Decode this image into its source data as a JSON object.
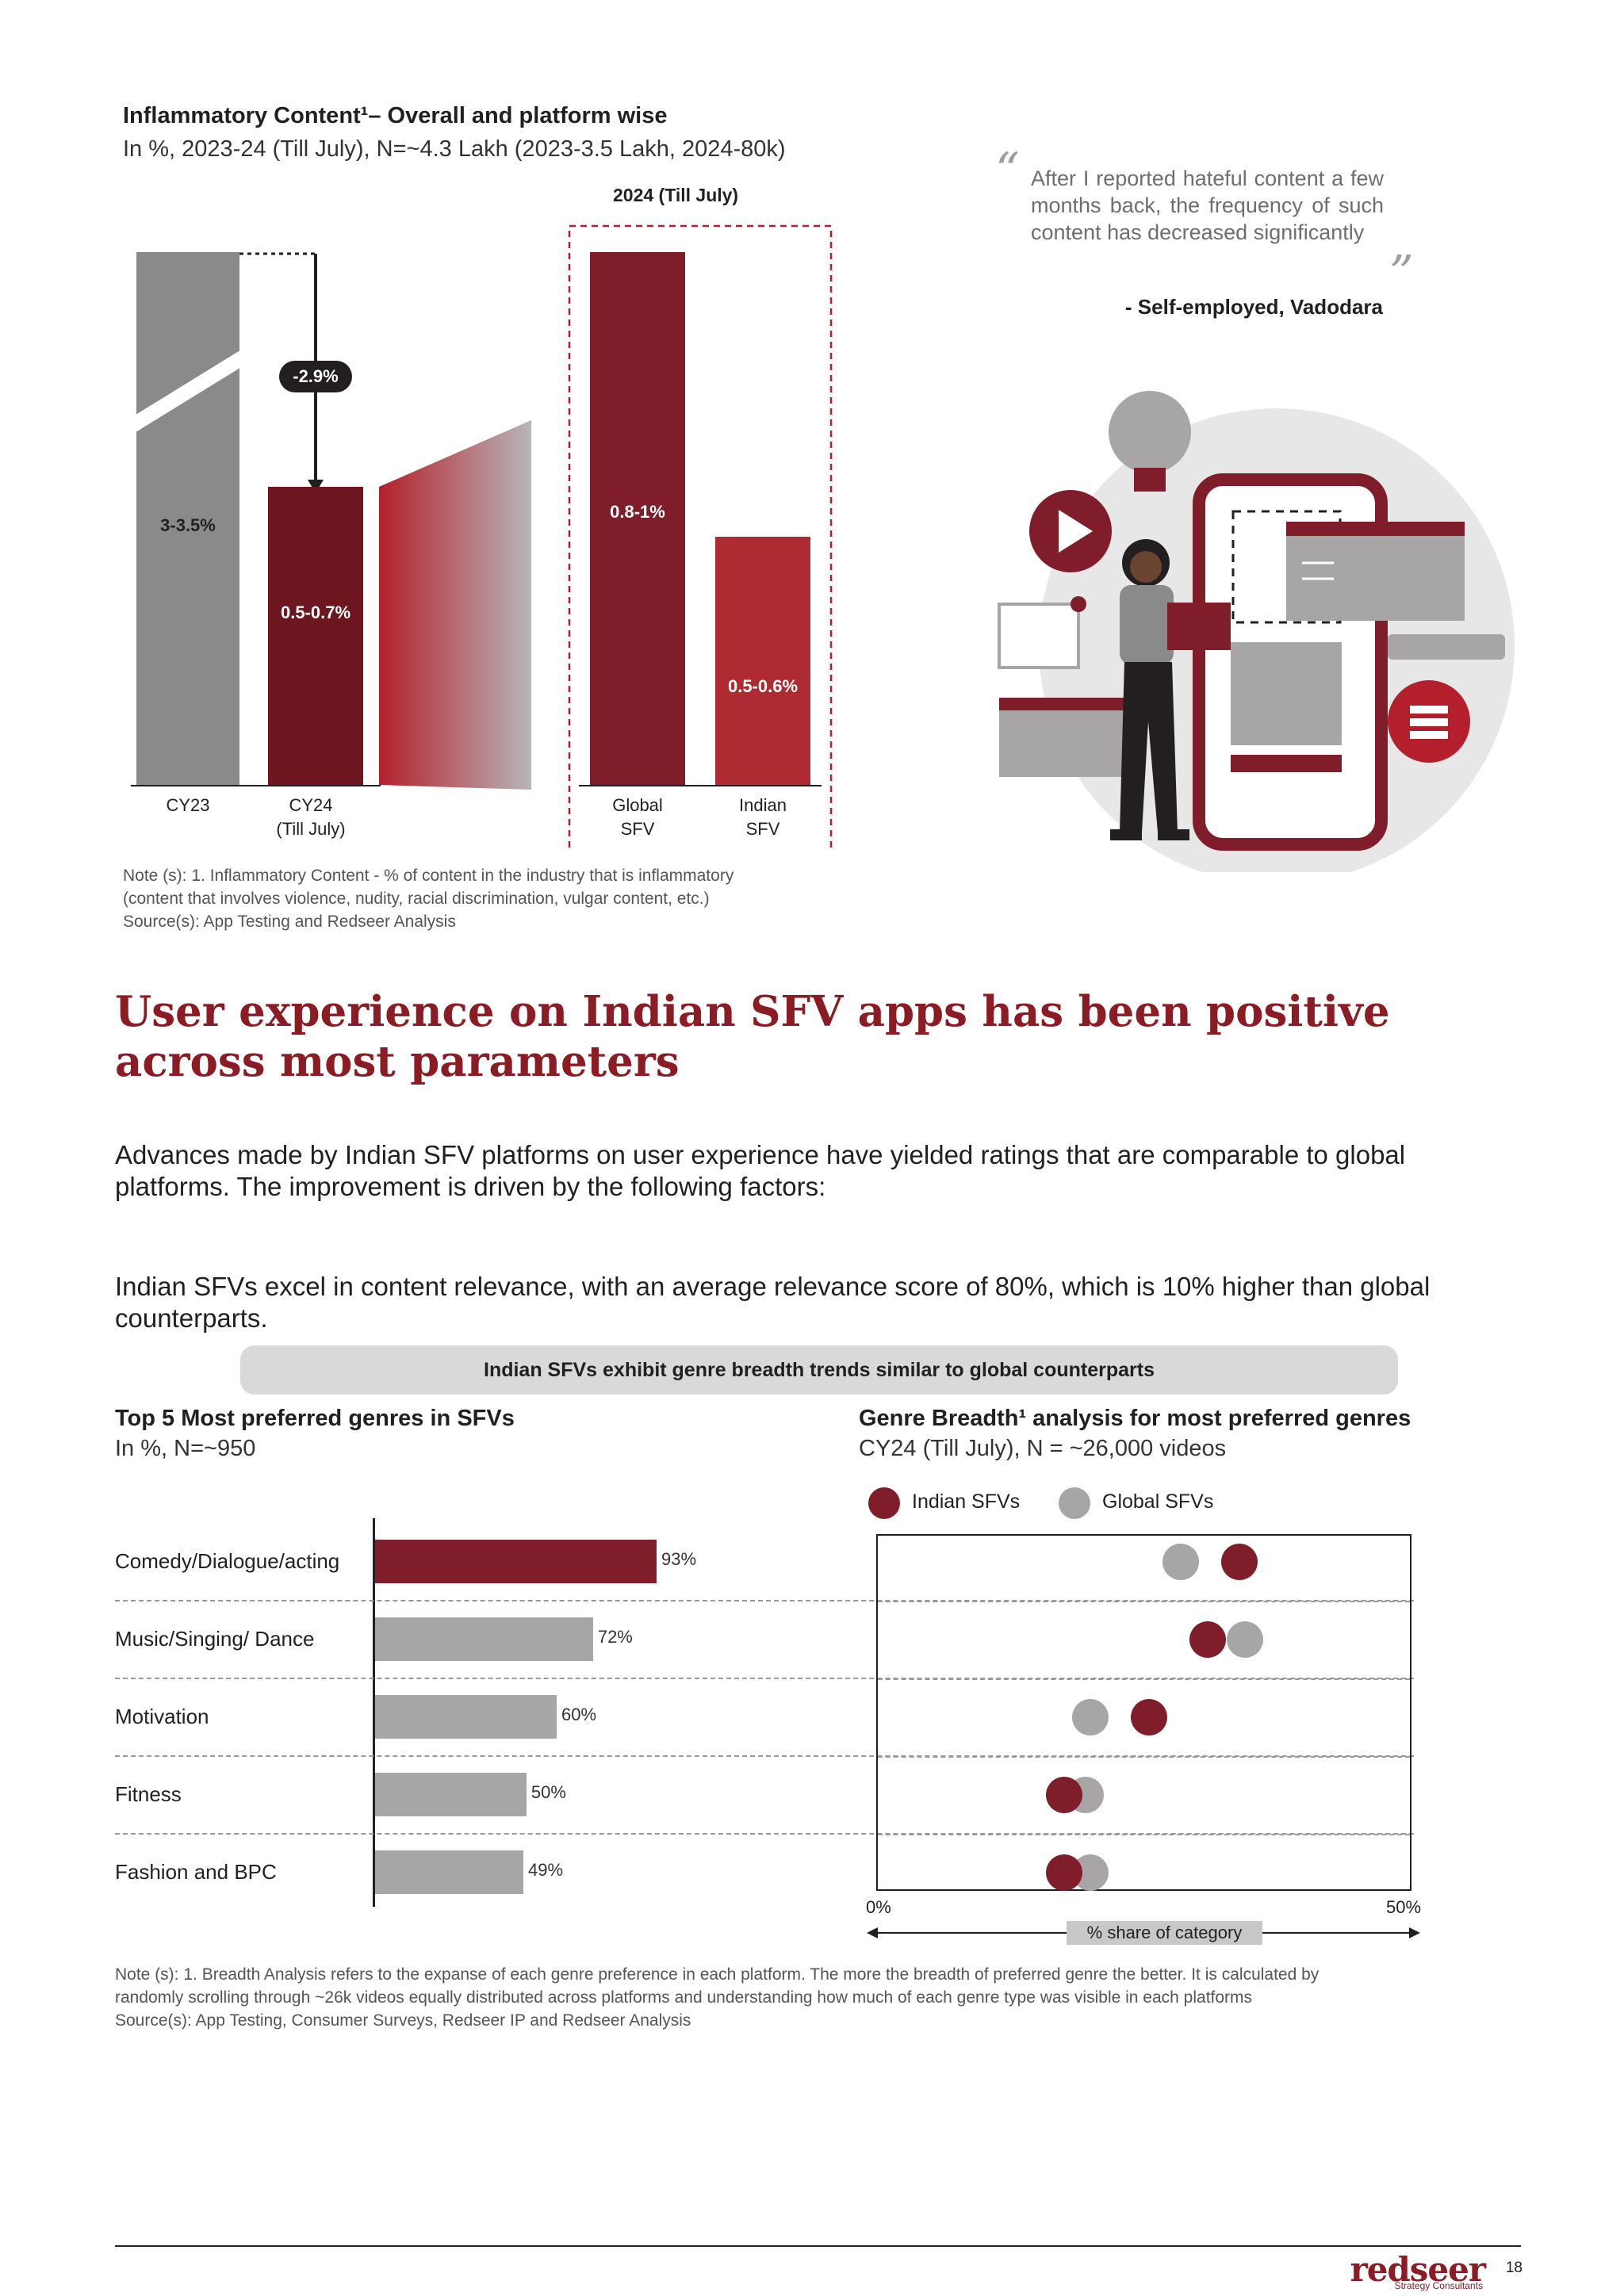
{
  "inflammatory": {
    "title": "Inflammatory Content¹– Overall and platform wise",
    "subtitle": "In %, 2023-24 (Till July), N=~4.3 Lakh (2023-3.5 Lakh, 2024-80k)",
    "panel_title": "2024 (Till July)",
    "change_badge": "-2.9%",
    "bars": [
      {
        "category": "CY23",
        "label": "3-3.5%"
      },
      {
        "category": "CY24",
        "category_line2": "(Till July)",
        "label": "0.5-0.7%"
      },
      {
        "category": "Global",
        "category_line2": "SFV",
        "label": "0.8-1%"
      },
      {
        "category": "Indian",
        "category_line2": "SFV",
        "label": "0.5-0.6%"
      }
    ],
    "note_lines": [
      "Note (s): 1. Inflammatory Content - % of content in the industry that is inflammatory",
      "(content that involves violence, nudity, racial discrimination, vulgar content, etc.)",
      "Source(s): App Testing and Redseer Analysis"
    ]
  },
  "quote": {
    "text": "After I reported hateful content a few months back, the frequency of such content has decreased significantly",
    "author": "- Self-employed, Vadodara",
    "open_mark": "“",
    "close_mark": "”"
  },
  "heading": "User experience on Indian SFV apps has been positive across most parameters",
  "para1": "Advances made by Indian SFV platforms on user experience have yielded ratings that are comparable to global platforms. The improvement is driven by the following factors:",
  "para2": "Indian SFVs excel in content relevance, with an average relevance score of 80%, which is 10% higher than global counterparts.",
  "pill": "Indian SFVs exhibit genre breadth trends similar to global counterparts",
  "genres_chart": {
    "title": "Top 5 Most preferred genres in SFVs",
    "subtitle": "In %, N=~950",
    "items": [
      {
        "label": "Comedy/Dialogue/acting",
        "value": 93,
        "display": "93%",
        "highlight": true
      },
      {
        "label": "Music/Singing/ Dance",
        "value": 72,
        "display": "72%",
        "highlight": false
      },
      {
        "label": "Motivation",
        "value": 60,
        "display": "60%",
        "highlight": false
      },
      {
        "label": "Fitness",
        "value": 50,
        "display": "50%",
        "highlight": false
      },
      {
        "label": "Fashion and BPC",
        "value": 49,
        "display": "49%",
        "highlight": false
      }
    ],
    "colors": {
      "highlight": "#7f1d2b",
      "normal": "#a7a5a6"
    }
  },
  "breadth_chart": {
    "title": "Genre Breadth¹ analysis for most preferred genres",
    "subtitle": "CY24 (Till July), N = ~26,000 videos",
    "legend": [
      {
        "name": "Indian SFVs",
        "color": "#7f1d2b"
      },
      {
        "name": "Global SFVs",
        "color": "#a7a5a6"
      }
    ],
    "x_min_label": "0%",
    "x_max_label": "50%",
    "axis_label": "% share of category",
    "xlim": [
      0,
      50
    ],
    "rows": [
      {
        "indian": 34,
        "global": 28.5
      },
      {
        "indian": 31,
        "global": 34.5
      },
      {
        "indian": 25.5,
        "global": 20
      },
      {
        "indian": 17.5,
        "global": 19.5
      },
      {
        "indian": 17.5,
        "global": 20
      }
    ]
  },
  "breadth_note_lines": [
    "Note (s): 1. Breadth Analysis refers to the expanse of each genre preference in each platform. The more the breadth of preferred genre the better. It is calculated by",
    "randomly scrolling through ~26k videos equally distributed across platforms and understanding how much of each genre type was visible in each platforms",
    "Source(s): App Testing, Consumer Surveys, Redseer IP and Redseer Analysis"
  ],
  "footer": {
    "logo": "redseer",
    "logo_sub": "Strategy Consultants",
    "page": "18"
  }
}
